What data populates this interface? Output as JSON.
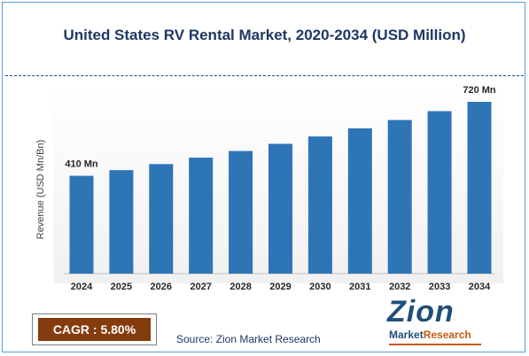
{
  "chart_data": {
    "type": "bar",
    "title": "United States RV Rental Market, 2020-2034 (USD Million)",
    "ylabel": "Revenue (USD Mn/Bn)",
    "categories": [
      "2024",
      "2025",
      "2026",
      "2027",
      "2028",
      "2029",
      "2030",
      "2031",
      "2032",
      "2033",
      "2034"
    ],
    "values": [
      410,
      434,
      459,
      486,
      514,
      544,
      575,
      609,
      644,
      681,
      720
    ],
    "data_labels": {
      "2024": "410 Mn",
      "2034": "720 Mn"
    },
    "ylim": [
      0,
      720
    ],
    "grid": false,
    "bar_color": "#2e75b6"
  },
  "cagr": {
    "text": "CAGR : 5.80%"
  },
  "source": {
    "text": "Source: Zion Market Research"
  },
  "logo": {
    "main": "Zion",
    "word1": "Market",
    "word2": "Research"
  },
  "colors": {
    "title": "#1f3864",
    "cagr_bg": "#843c0c",
    "logo": "#1f4e79",
    "logo_accent": "#c55a11"
  }
}
